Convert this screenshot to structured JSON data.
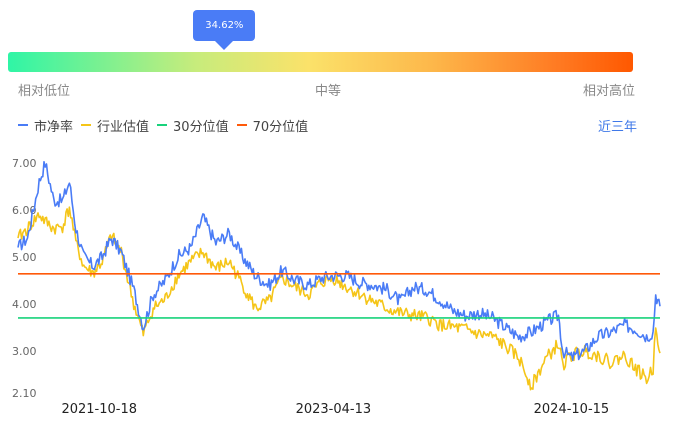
{
  "gauge": {
    "percentile_label": "34.62%",
    "percentile": 0.3462,
    "low_label": "相对低位",
    "mid_label": "中等",
    "high_label": "相对高位",
    "gradient_colors": [
      "#2ff5a6",
      "#fbe26a",
      "#ff5800"
    ]
  },
  "legend": {
    "items": [
      {
        "label": "市净率",
        "color": "#4a7cf6"
      },
      {
        "label": "行业估值",
        "color": "#f5c518"
      },
      {
        "label": "30分位值",
        "color": "#19d27c"
      },
      {
        "label": "70分位值",
        "color": "#ff5a0a"
      }
    ]
  },
  "period_label": "近三年",
  "chart_data": {
    "type": "line",
    "x_tick_labels": [
      "2021-10-18",
      "2023-04-13",
      "2024-10-15"
    ],
    "y_tick_labels": [
      "2.10",
      "3.00",
      "4.00",
      "5.00",
      "6.00",
      "7.00"
    ],
    "y_ticks": [
      2.1,
      3.0,
      4.0,
      5.0,
      6.0,
      7.0
    ],
    "ylim": [
      2.1,
      7.0
    ],
    "xlim": [
      "2021-04-13",
      "2025-05-08"
    ],
    "grid": false,
    "legend_position": "top-left",
    "reference_lines": [
      {
        "name": "30分位值",
        "value": 3.7,
        "color": "#19d27c"
      },
      {
        "name": "70分位值",
        "value": 4.64,
        "color": "#ff5a0a"
      }
    ],
    "series": [
      {
        "name": "市净率",
        "color": "#4a7cf6",
        "points": [
          [
            "2021-04-13",
            5.2
          ],
          [
            "2021-05-05",
            5.4
          ],
          [
            "2021-06-01",
            6.6
          ],
          [
            "2021-06-15",
            7.0
          ],
          [
            "2021-07-05",
            6.2
          ],
          [
            "2021-07-25",
            6.2
          ],
          [
            "2021-08-10",
            6.6
          ],
          [
            "2021-08-25",
            5.6
          ],
          [
            "2021-09-12",
            5.0
          ],
          [
            "2021-10-04",
            4.8
          ],
          [
            "2021-10-25",
            5.0
          ],
          [
            "2021-11-15",
            5.4
          ],
          [
            "2021-12-08",
            5.1
          ],
          [
            "2022-01-06",
            4.3
          ],
          [
            "2022-01-28",
            3.5
          ],
          [
            "2022-02-20",
            4.2
          ],
          [
            "2022-03-20",
            4.5
          ],
          [
            "2022-04-18",
            5.0
          ],
          [
            "2022-05-18",
            5.2
          ],
          [
            "2022-06-15",
            5.85
          ],
          [
            "2022-07-15",
            5.3
          ],
          [
            "2022-08-15",
            5.5
          ],
          [
            "2022-09-15",
            5.0
          ],
          [
            "2022-10-15",
            4.6
          ],
          [
            "2022-11-15",
            4.4
          ],
          [
            "2022-12-15",
            4.7
          ],
          [
            "2023-01-15",
            4.5
          ],
          [
            "2023-02-15",
            4.4
          ],
          [
            "2023-03-15",
            4.55
          ],
          [
            "2023-04-13",
            4.6
          ],
          [
            "2023-05-15",
            4.6
          ],
          [
            "2023-06-15",
            4.45
          ],
          [
            "2023-07-15",
            4.4
          ],
          [
            "2023-08-15",
            4.3
          ],
          [
            "2023-09-15",
            4.05
          ],
          [
            "2023-10-15",
            4.35
          ],
          [
            "2023-11-15",
            4.3
          ],
          [
            "2023-12-15",
            4.1
          ],
          [
            "2024-01-15",
            3.85
          ],
          [
            "2024-02-15",
            3.75
          ],
          [
            "2024-03-15",
            3.8
          ],
          [
            "2024-04-15",
            3.7
          ],
          [
            "2024-05-15",
            3.5
          ],
          [
            "2024-06-15",
            3.3
          ],
          [
            "2024-07-15",
            3.4
          ],
          [
            "2024-08-15",
            3.6
          ],
          [
            "2024-09-15",
            3.75
          ],
          [
            "2024-09-25",
            3.0
          ],
          [
            "2024-10-15",
            2.85
          ],
          [
            "2024-11-15",
            3.0
          ],
          [
            "2024-12-15",
            3.3
          ],
          [
            "2025-01-15",
            3.4
          ],
          [
            "2025-02-15",
            3.55
          ],
          [
            "2025-03-15",
            3.45
          ],
          [
            "2025-04-07",
            3.3
          ],
          [
            "2025-04-22",
            3.4
          ],
          [
            "2025-04-28",
            4.2
          ],
          [
            "2025-05-08",
            3.95
          ]
        ]
      },
      {
        "name": "行业估值",
        "color": "#f5c518",
        "points": [
          [
            "2021-04-13",
            5.4
          ],
          [
            "2021-05-05",
            5.6
          ],
          [
            "2021-06-01",
            5.9
          ],
          [
            "2021-06-15",
            5.75
          ],
          [
            "2021-07-05",
            5.6
          ],
          [
            "2021-07-25",
            5.65
          ],
          [
            "2021-08-10",
            6.05
          ],
          [
            "2021-08-25",
            5.3
          ],
          [
            "2021-09-12",
            4.8
          ],
          [
            "2021-10-04",
            4.65
          ],
          [
            "2021-10-25",
            4.9
          ],
          [
            "2021-11-15",
            5.45
          ],
          [
            "2021-12-08",
            5.1
          ],
          [
            "2022-01-06",
            4.0
          ],
          [
            "2022-01-28",
            3.35
          ],
          [
            "2022-02-20",
            3.9
          ],
          [
            "2022-03-20",
            4.1
          ],
          [
            "2022-04-18",
            4.6
          ],
          [
            "2022-05-18",
            4.9
          ],
          [
            "2022-06-15",
            5.1
          ],
          [
            "2022-07-15",
            4.75
          ],
          [
            "2022-08-15",
            4.9
          ],
          [
            "2022-09-15",
            4.4
          ],
          [
            "2022-10-15",
            3.9
          ],
          [
            "2022-11-15",
            4.05
          ],
          [
            "2022-12-15",
            4.55
          ],
          [
            "2023-01-15",
            4.35
          ],
          [
            "2023-02-15",
            4.2
          ],
          [
            "2023-03-15",
            4.45
          ],
          [
            "2023-04-13",
            4.55
          ],
          [
            "2023-05-15",
            4.35
          ],
          [
            "2023-06-15",
            4.2
          ],
          [
            "2023-07-15",
            4.05
          ],
          [
            "2023-08-15",
            3.9
          ],
          [
            "2023-09-15",
            3.8
          ],
          [
            "2023-10-15",
            3.75
          ],
          [
            "2023-11-15",
            3.7
          ],
          [
            "2023-12-15",
            3.55
          ],
          [
            "2024-01-15",
            3.5
          ],
          [
            "2024-02-15",
            3.45
          ],
          [
            "2024-03-15",
            3.35
          ],
          [
            "2024-04-15",
            3.3
          ],
          [
            "2024-05-15",
            3.1
          ],
          [
            "2024-06-15",
            2.85
          ],
          [
            "2024-07-15",
            2.25
          ],
          [
            "2024-08-15",
            2.8
          ],
          [
            "2024-09-15",
            3.15
          ],
          [
            "2024-09-25",
            2.7
          ],
          [
            "2024-10-15",
            2.9
          ],
          [
            "2024-11-15",
            3.0
          ],
          [
            "2024-12-15",
            2.9
          ],
          [
            "2025-01-15",
            2.75
          ],
          [
            "2025-02-15",
            2.9
          ],
          [
            "2025-03-15",
            2.6
          ],
          [
            "2025-04-07",
            2.4
          ],
          [
            "2025-04-22",
            2.6
          ],
          [
            "2025-04-28",
            3.6
          ],
          [
            "2025-05-08",
            2.95
          ]
        ]
      }
    ]
  }
}
